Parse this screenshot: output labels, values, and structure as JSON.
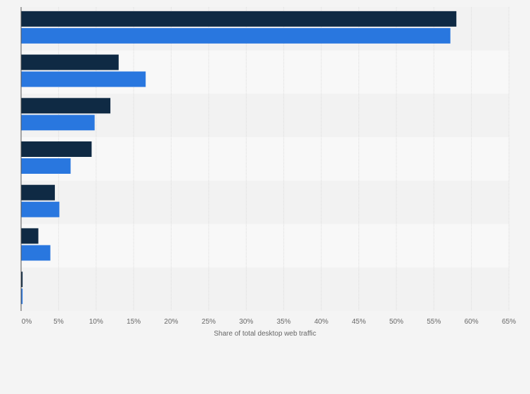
{
  "chart_data": {
    "type": "bar",
    "orientation": "horizontal",
    "categories": [
      "",
      "",
      "",
      "",
      "",
      "",
      ""
    ],
    "series": [
      {
        "values": [
          58.0,
          13.0,
          11.9,
          9.4,
          4.5,
          2.3,
          0.2
        ]
      },
      {
        "values": [
          57.2,
          16.6,
          9.8,
          6.6,
          5.1,
          3.9,
          0.2
        ]
      }
    ],
    "colors": {
      "series_1": "#0f2a44",
      "series_2": "#2977df",
      "band_light": "#f8f8f8",
      "band_dark": "#f2f2f2"
    },
    "xlim": [
      0,
      65
    ],
    "x_ticks": [
      0,
      5,
      10,
      15,
      20,
      25,
      30,
      35,
      40,
      45,
      50,
      55,
      60,
      65
    ],
    "x_tick_labels": [
      "0%",
      "5%",
      "10%",
      "15%",
      "20%",
      "25%",
      "30%",
      "35%",
      "40%",
      "45%",
      "50%",
      "55%",
      "60%",
      "65%"
    ],
    "xlabel": "Share of total desktop web traffic",
    "grid": true,
    "legend": "none"
  }
}
